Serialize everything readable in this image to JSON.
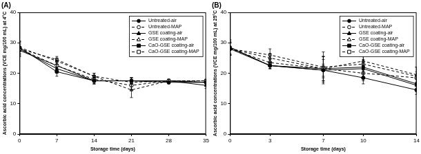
{
  "chart_data": [
    {
      "type": "line",
      "title": "(A)",
      "x_label": "Storage time (days)",
      "y_label": "Ascorbic acid concentrations (VCE mg/100 mL) at 4°C",
      "x": [
        0,
        7,
        14,
        21,
        28,
        35
      ],
      "xlim": [
        0,
        35
      ],
      "xticks": [
        0,
        7,
        14,
        21,
        28,
        35
      ],
      "ylim": [
        0,
        40
      ],
      "yticks": [
        0,
        10,
        20,
        30,
        40
      ],
      "grid": false,
      "legend": "upper right",
      "series": [
        {
          "name": "Untreated-air",
          "color": "#000000",
          "marker": "circle",
          "line_style": "solid",
          "values": [
            28.5,
            20.5,
            17.5,
            17.5,
            17,
            17
          ],
          "errors": [
            2,
            1.5,
            1,
            1,
            0.5,
            0.5
          ]
        },
        {
          "name": "Untreated-MAP",
          "color": "#000000",
          "marker": "open_circle",
          "line_style": "dashed",
          "values": [
            28,
            22.5,
            18,
            16,
            17.5,
            17.5
          ],
          "errors": [
            2,
            1.5,
            1,
            1.5,
            0.5,
            0.5
          ]
        },
        {
          "name": "GSE coating-air",
          "color": "#000000",
          "marker": "triangle",
          "line_style": "solid",
          "values": [
            28,
            21.5,
            17.5,
            17.5,
            17.5,
            16
          ],
          "errors": [
            2.5,
            1.5,
            1,
            1,
            0.5,
            1
          ]
        },
        {
          "name": "GSE coating-MAP",
          "color": "#000000",
          "marker": "open_triangle",
          "line_style": "dashed",
          "values": [
            28.5,
            24,
            19,
            14.5,
            17.5,
            17
          ],
          "errors": [
            2,
            1,
            1,
            2.5,
            0.5,
            1
          ]
        },
        {
          "name": "CaO-GSE coating-air",
          "color": "#000000",
          "marker": "square",
          "line_style": "solid",
          "values": [
            27.5,
            22.5,
            17.5,
            17.5,
            17.5,
            17
          ],
          "errors": [
            2,
            1.5,
            1,
            1,
            0.5,
            0.5
          ]
        },
        {
          "name": "CaO-GSE coating-MAP",
          "color": "#000000",
          "marker": "open_square",
          "line_style": "dashed",
          "values": [
            28,
            24.5,
            19,
            17,
            17.5,
            17.5
          ],
          "errors": [
            2,
            1,
            1,
            1.5,
            0.5,
            0.5
          ]
        }
      ]
    },
    {
      "type": "line",
      "title": "(B)",
      "x_label": "Storage time (days)",
      "y_label": "Ascorbic acid concentrations (VCE mg/100 mL) at 25°C",
      "x": [
        0,
        3,
        7,
        10,
        14
      ],
      "xlim": [
        0,
        14
      ],
      "xticks": [
        0,
        3,
        7,
        10,
        14
      ],
      "ylim": [
        0,
        40
      ],
      "yticks": [
        0,
        10,
        20,
        30,
        40
      ],
      "grid": false,
      "legend": "upper right",
      "series": [
        {
          "name": "Untreated-air",
          "color": "#000000",
          "marker": "circle",
          "line_style": "solid",
          "values": [
            28,
            22.5,
            21,
            18.5,
            14.5
          ],
          "errors": [
            2,
            1,
            2,
            2,
            1.5
          ]
        },
        {
          "name": "Untreated-MAP",
          "color": "#000000",
          "marker": "open_circle",
          "line_style": "dashed",
          "values": [
            28,
            23.5,
            21.5,
            20,
            18.5
          ],
          "errors": [
            2,
            1,
            4,
            2.5,
            2
          ]
        },
        {
          "name": "GSE coating-air",
          "color": "#000000",
          "marker": "triangle",
          "line_style": "solid",
          "values": [
            28.5,
            22.5,
            21,
            21.5,
            16
          ],
          "errors": [
            2.5,
            1,
            4.5,
            3,
            2
          ]
        },
        {
          "name": "GSE coating-MAP",
          "color": "#000000",
          "marker": "open_triangle",
          "line_style": "dashed",
          "values": [
            28,
            25,
            21.5,
            24,
            19.5
          ],
          "errors": [
            2,
            1.5,
            4,
            3,
            2.5
          ]
        },
        {
          "name": "CaO-GSE coating-air",
          "color": "#000000",
          "marker": "square",
          "line_style": "solid",
          "values": [
            28.5,
            22.5,
            21.5,
            22,
            16.5
          ],
          "errors": [
            2,
            1,
            3,
            2,
            2
          ]
        },
        {
          "name": "CaO-GSE coating-MAP",
          "color": "#000000",
          "marker": "open_square",
          "line_style": "dashed",
          "values": [
            28,
            26,
            22,
            23,
            19
          ],
          "errors": [
            2,
            2,
            5,
            3,
            3
          ]
        }
      ]
    }
  ]
}
